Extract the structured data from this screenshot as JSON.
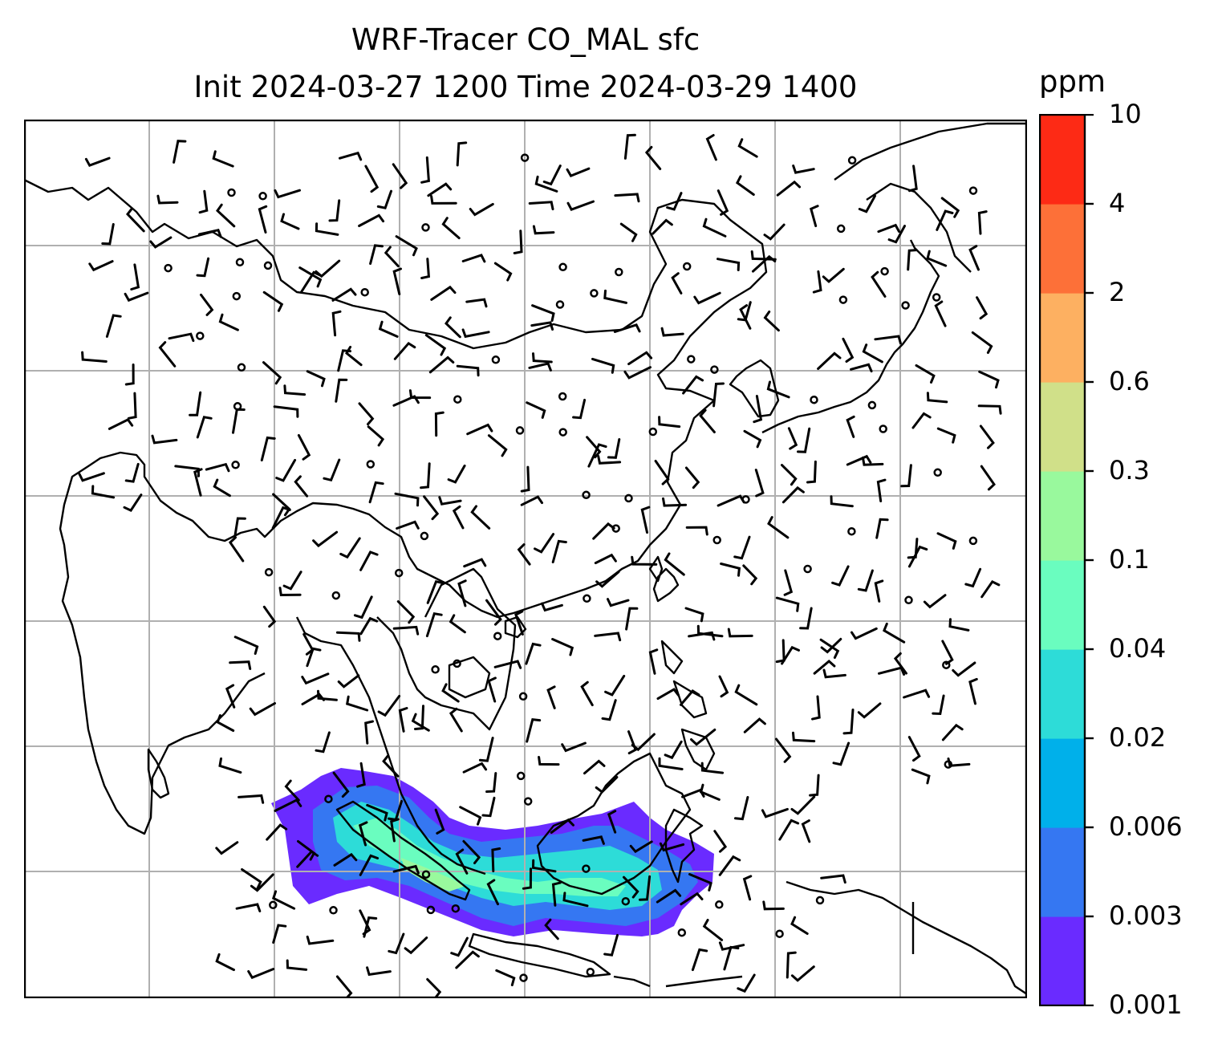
{
  "title": {
    "line1": "WRF-Tracer CO_MAL sfc",
    "line2": "Init 2024-03-27 1200 Time 2024-03-29 1400"
  },
  "colorbar": {
    "unit": "ppm",
    "levels": [
      "0.001",
      "0.003",
      "0.006",
      "0.02",
      "0.04",
      "0.1",
      "0.3",
      "0.6",
      "2",
      "4",
      "10"
    ],
    "colors": [
      "#6a2bff",
      "#3577f2",
      "#00b0ea",
      "#2ddcd8",
      "#6afdbf",
      "#99f99d",
      "#d0e089",
      "#fdb061",
      "#fd7038",
      "#fd2a15"
    ]
  },
  "map": {
    "region": "South and East Asia",
    "gridlines": true,
    "wind_barbs": true,
    "calm_marker": "circle",
    "plume": {
      "region": "Sumatra / Malay Peninsula / Borneo",
      "max_level": "0.1"
    }
  }
}
